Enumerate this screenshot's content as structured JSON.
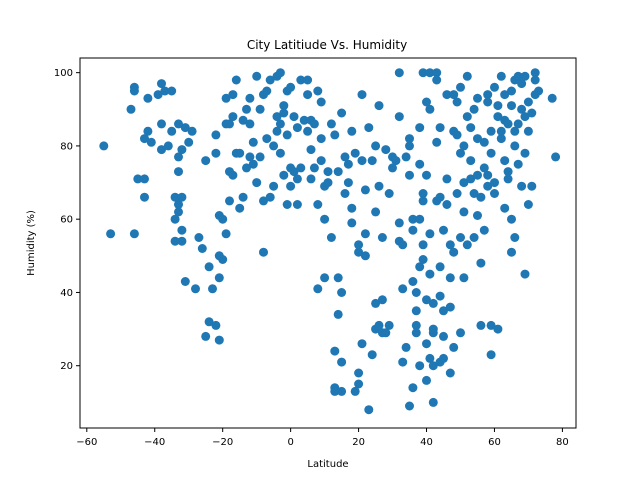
{
  "chart_data": {
    "type": "scatter",
    "title": "City Latitiude Vs. Humidity",
    "xlabel": "Latitude",
    "ylabel": "Humidity (%)",
    "xlim": [
      -62,
      84
    ],
    "ylim": [
      3,
      104
    ],
    "xticks": [
      -60,
      -40,
      -20,
      0,
      20,
      40,
      60,
      80
    ],
    "yticks": [
      20,
      40,
      60,
      80,
      100
    ],
    "grid": false,
    "marker_color": "#1f77b4",
    "points": [
      [
        -55,
        80
      ],
      [
        -53,
        56
      ],
      [
        -47,
        90
      ],
      [
        -46,
        96
      ],
      [
        -46,
        95
      ],
      [
        -46,
        56
      ],
      [
        -45,
        71
      ],
      [
        -43,
        71
      ],
      [
        -43,
        66
      ],
      [
        -43,
        82
      ],
      [
        -42,
        84
      ],
      [
        -42,
        93
      ],
      [
        -41,
        81
      ],
      [
        -39,
        94
      ],
      [
        -38,
        86
      ],
      [
        -38,
        97
      ],
      [
        -38,
        79
      ],
      [
        -37,
        95
      ],
      [
        -36,
        80
      ],
      [
        -35,
        84
      ],
      [
        -35,
        95
      ],
      [
        -34,
        60
      ],
      [
        -34,
        66
      ],
      [
        -34,
        54
      ],
      [
        -33,
        77
      ],
      [
        -33,
        73
      ],
      [
        -33,
        86
      ],
      [
        -33,
        62
      ],
      [
        -33,
        64
      ],
      [
        -32,
        57
      ],
      [
        -32,
        54
      ],
      [
        -32,
        79
      ],
      [
        -32,
        66
      ],
      [
        -31,
        43
      ],
      [
        -31,
        85
      ],
      [
        -30,
        81
      ],
      [
        -29,
        84
      ],
      [
        -28,
        41
      ],
      [
        -27,
        55
      ],
      [
        -26,
        52
      ],
      [
        -25,
        76
      ],
      [
        -25,
        28
      ],
      [
        -24,
        32
      ],
      [
        -24,
        47
      ],
      [
        -23,
        41
      ],
      [
        -22,
        31
      ],
      [
        -22,
        83
      ],
      [
        -22,
        78
      ],
      [
        -21,
        27
      ],
      [
        -21,
        44
      ],
      [
        -21,
        50
      ],
      [
        -21,
        61
      ],
      [
        -20,
        60
      ],
      [
        -20,
        49
      ],
      [
        -19,
        56
      ],
      [
        -19,
        93
      ],
      [
        -19,
        86
      ],
      [
        -18,
        86
      ],
      [
        -18,
        73
      ],
      [
        -18,
        65
      ],
      [
        -17,
        72
      ],
      [
        -17,
        88
      ],
      [
        -17,
        94
      ],
      [
        -16,
        78
      ],
      [
        -16,
        98
      ],
      [
        -15,
        63
      ],
      [
        -15,
        78
      ],
      [
        -14,
        66
      ],
      [
        -14,
        87
      ],
      [
        -13,
        74
      ],
      [
        -13,
        90
      ],
      [
        -12,
        77
      ],
      [
        -12,
        93
      ],
      [
        -12,
        86
      ],
      [
        -11,
        81
      ],
      [
        -11,
        75
      ],
      [
        -10,
        99
      ],
      [
        -10,
        70
      ],
      [
        -9,
        77
      ],
      [
        -9,
        90
      ],
      [
        -8,
        94
      ],
      [
        -8,
        51
      ],
      [
        -8,
        65
      ],
      [
        -7,
        82
      ],
      [
        -7,
        95
      ],
      [
        -6,
        66
      ],
      [
        -6,
        98
      ],
      [
        -5,
        80
      ],
      [
        -5,
        69
      ],
      [
        -4,
        88
      ],
      [
        -4,
        99
      ],
      [
        -4,
        84
      ],
      [
        -3,
        100
      ],
      [
        -3,
        78
      ],
      [
        -3,
        86
      ],
      [
        -2,
        72
      ],
      [
        -2,
        91
      ],
      [
        -2,
        89
      ],
      [
        -1,
        83
      ],
      [
        -1,
        64
      ],
      [
        -1,
        95
      ],
      [
        0,
        96
      ],
      [
        0,
        74
      ],
      [
        0,
        69
      ],
      [
        1,
        88
      ],
      [
        1,
        73
      ],
      [
        2,
        85
      ],
      [
        2,
        71
      ],
      [
        2,
        64
      ],
      [
        3,
        74
      ],
      [
        3,
        98
      ],
      [
        4,
        87
      ],
      [
        5,
        98
      ],
      [
        5,
        94
      ],
      [
        5,
        84
      ],
      [
        6,
        79
      ],
      [
        6,
        87
      ],
      [
        6,
        71
      ],
      [
        7,
        74
      ],
      [
        7,
        86
      ],
      [
        8,
        95
      ],
      [
        8,
        64
      ],
      [
        8,
        41
      ],
      [
        9,
        76
      ],
      [
        9,
        92
      ],
      [
        9,
        82
      ],
      [
        10,
        44
      ],
      [
        10,
        69
      ],
      [
        10,
        60
      ],
      [
        11,
        70
      ],
      [
        11,
        73
      ],
      [
        12,
        86
      ],
      [
        12,
        55
      ],
      [
        13,
        14
      ],
      [
        13,
        13
      ],
      [
        13,
        24
      ],
      [
        13,
        83
      ],
      [
        14,
        44
      ],
      [
        14,
        34
      ],
      [
        14,
        73
      ],
      [
        15,
        40
      ],
      [
        15,
        21
      ],
      [
        15,
        13
      ],
      [
        15,
        89
      ],
      [
        16,
        67
      ],
      [
        16,
        77
      ],
      [
        17,
        70
      ],
      [
        17,
        75
      ],
      [
        18,
        63
      ],
      [
        18,
        84
      ],
      [
        18,
        59
      ],
      [
        19,
        13
      ],
      [
        19,
        78
      ],
      [
        20,
        51
      ],
      [
        20,
        53
      ],
      [
        20,
        15
      ],
      [
        20,
        18
      ],
      [
        21,
        94
      ],
      [
        21,
        76
      ],
      [
        21,
        26
      ],
      [
        22,
        56
      ],
      [
        22,
        50
      ],
      [
        22,
        68
      ],
      [
        23,
        8
      ],
      [
        23,
        85
      ],
      [
        24,
        76
      ],
      [
        24,
        23
      ],
      [
        25,
        30
      ],
      [
        25,
        37
      ],
      [
        25,
        80
      ],
      [
        25,
        62
      ],
      [
        26,
        31
      ],
      [
        26,
        91
      ],
      [
        26,
        69
      ],
      [
        27,
        55
      ],
      [
        27,
        29
      ],
      [
        27,
        38
      ],
      [
        28,
        29
      ],
      [
        28,
        79
      ],
      [
        29,
        31
      ],
      [
        29,
        67
      ],
      [
        30,
        74
      ],
      [
        30,
        77
      ],
      [
        31,
        76
      ],
      [
        32,
        100
      ],
      [
        32,
        88
      ],
      [
        32,
        54
      ],
      [
        32,
        59
      ],
      [
        33,
        53
      ],
      [
        33,
        21
      ],
      [
        33,
        41
      ],
      [
        34,
        25
      ],
      [
        34,
        77
      ],
      [
        35,
        80
      ],
      [
        35,
        72
      ],
      [
        35,
        82
      ],
      [
        35,
        9
      ],
      [
        36,
        57
      ],
      [
        36,
        43
      ],
      [
        36,
        60
      ],
      [
        36,
        14
      ],
      [
        37,
        29
      ],
      [
        37,
        31
      ],
      [
        37,
        35
      ],
      [
        37,
        40
      ],
      [
        38,
        60
      ],
      [
        38,
        20
      ],
      [
        38,
        47
      ],
      [
        38,
        75
      ],
      [
        38,
        85
      ],
      [
        39,
        49
      ],
      [
        39,
        100
      ],
      [
        39,
        65
      ],
      [
        39,
        53
      ],
      [
        39,
        67
      ],
      [
        40,
        16
      ],
      [
        40,
        26
      ],
      [
        40,
        92
      ],
      [
        40,
        72
      ],
      [
        40,
        38
      ],
      [
        41,
        100
      ],
      [
        41,
        90
      ],
      [
        41,
        56
      ],
      [
        41,
        45
      ],
      [
        41,
        22
      ],
      [
        42,
        20
      ],
      [
        42,
        29
      ],
      [
        42,
        30
      ],
      [
        42,
        10
      ],
      [
        42,
        37
      ],
      [
        43,
        100
      ],
      [
        43,
        81
      ],
      [
        43,
        98
      ],
      [
        43,
        65
      ],
      [
        44,
        85
      ],
      [
        44,
        66
      ],
      [
        44,
        47
      ],
      [
        44,
        39
      ],
      [
        44,
        21
      ],
      [
        45,
        28
      ],
      [
        45,
        22
      ],
      [
        45,
        35
      ],
      [
        45,
        57
      ],
      [
        46,
        94
      ],
      [
        46,
        64
      ],
      [
        46,
        71
      ],
      [
        47,
        18
      ],
      [
        47,
        53
      ],
      [
        47,
        44
      ],
      [
        47,
        36
      ],
      [
        48,
        94
      ],
      [
        48,
        51
      ],
      [
        48,
        84
      ],
      [
        48,
        25
      ],
      [
        49,
        83
      ],
      [
        49,
        67
      ],
      [
        49,
        92
      ],
      [
        50,
        29
      ],
      [
        50,
        78
      ],
      [
        50,
        96
      ],
      [
        50,
        55
      ],
      [
        51,
        70
      ],
      [
        51,
        62
      ],
      [
        51,
        80
      ],
      [
        51,
        44
      ],
      [
        52,
        99
      ],
      [
        52,
        88
      ],
      [
        52,
        53
      ],
      [
        53,
        85
      ],
      [
        53,
        76
      ],
      [
        53,
        71
      ],
      [
        54,
        55
      ],
      [
        54,
        90
      ],
      [
        54,
        67
      ],
      [
        55,
        82
      ],
      [
        55,
        72
      ],
      [
        55,
        93
      ],
      [
        55,
        61
      ],
      [
        56,
        48
      ],
      [
        56,
        66
      ],
      [
        56,
        31
      ],
      [
        57,
        81
      ],
      [
        57,
        57
      ],
      [
        57,
        74
      ],
      [
        58,
        92
      ],
      [
        58,
        72
      ],
      [
        58,
        69
      ],
      [
        58,
        94
      ],
      [
        59,
        31
      ],
      [
        59,
        84
      ],
      [
        59,
        78
      ],
      [
        59,
        23
      ],
      [
        60,
        96
      ],
      [
        60,
        67
      ],
      [
        60,
        70
      ],
      [
        61,
        88
      ],
      [
        61,
        91
      ],
      [
        61,
        30
      ],
      [
        62,
        99
      ],
      [
        62,
        82
      ],
      [
        62,
        84
      ],
      [
        63,
        94
      ],
      [
        63,
        76
      ],
      [
        63,
        63
      ],
      [
        63,
        87
      ],
      [
        64,
        86
      ],
      [
        64,
        71
      ],
      [
        64,
        73
      ],
      [
        65,
        51
      ],
      [
        65,
        95
      ],
      [
        65,
        60
      ],
      [
        65,
        91
      ],
      [
        66,
        55
      ],
      [
        66,
        98
      ],
      [
        66,
        84
      ],
      [
        66,
        80
      ],
      [
        67,
        99
      ],
      [
        67,
        86
      ],
      [
        67,
        75
      ],
      [
        68,
        97
      ],
      [
        68,
        90
      ],
      [
        68,
        69
      ],
      [
        69,
        99
      ],
      [
        69,
        45
      ],
      [
        69,
        88
      ],
      [
        69,
        78
      ],
      [
        70,
        92
      ],
      [
        70,
        84
      ],
      [
        70,
        64
      ],
      [
        71,
        69
      ],
      [
        71,
        89
      ],
      [
        72,
        100
      ],
      [
        72,
        98
      ],
      [
        72,
        94
      ],
      [
        73,
        95
      ],
      [
        77,
        93
      ],
      [
        78,
        77
      ]
    ]
  }
}
